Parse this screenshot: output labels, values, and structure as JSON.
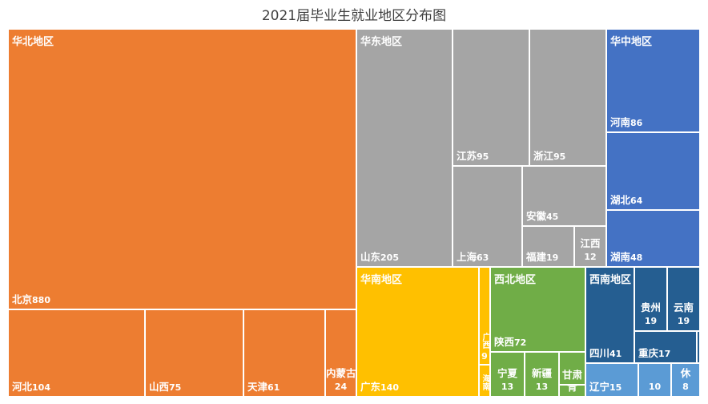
{
  "chart_data": {
    "type": "treemap",
    "title": "2021届毕业生就业地区分布图",
    "groups": [
      {
        "name": "华北地区",
        "color": "#ED7D31",
        "items": [
          {
            "name": "北京",
            "value": 880
          },
          {
            "name": "河北",
            "value": 104
          },
          {
            "name": "山西",
            "value": 75
          },
          {
            "name": "天津",
            "value": 61
          },
          {
            "name": "内蒙古",
            "value": 24
          }
        ]
      },
      {
        "name": "华东地区",
        "color": "#A5A5A5",
        "items": [
          {
            "name": "山东",
            "value": 205
          },
          {
            "name": "江苏",
            "value": 95
          },
          {
            "name": "浙江",
            "value": 95
          },
          {
            "name": "上海",
            "value": 63
          },
          {
            "name": "安徽",
            "value": 45
          },
          {
            "name": "福建",
            "value": 19
          },
          {
            "name": "江西",
            "value": 12
          }
        ]
      },
      {
        "name": "华中地区",
        "color": "#4472C4",
        "items": [
          {
            "name": "河南",
            "value": 86
          },
          {
            "name": "湖北",
            "value": 64
          },
          {
            "name": "湖南",
            "value": 48
          }
        ]
      },
      {
        "name": "华南地区",
        "color": "#FFC000",
        "items": [
          {
            "name": "广东",
            "value": 140
          },
          {
            "name": "广西",
            "value": 9
          },
          {
            "name": "海南",
            "value": null
          }
        ]
      },
      {
        "name": "西北地区",
        "color": "#70AD47",
        "items": [
          {
            "name": "陕西",
            "value": 72
          },
          {
            "name": "宁夏",
            "value": 13
          },
          {
            "name": "新疆",
            "value": 13
          },
          {
            "name": "甘肃",
            "value": null
          },
          {
            "name": "青",
            "value": null
          }
        ]
      },
      {
        "name": "西南地区",
        "color": "#255E91",
        "items": [
          {
            "name": "四川",
            "value": 41
          },
          {
            "name": "贵州",
            "value": 19
          },
          {
            "name": "云南",
            "value": 19
          },
          {
            "name": "重庆",
            "value": 17
          },
          {
            "name": "",
            "value": null
          }
        ]
      },
      {
        "name": "",
        "color": "#5B9BD5",
        "items": [
          {
            "name": "辽宁",
            "value": 15
          },
          {
            "name": "",
            "value": 10
          },
          {
            "name": "休",
            "value": 8
          }
        ]
      }
    ]
  }
}
